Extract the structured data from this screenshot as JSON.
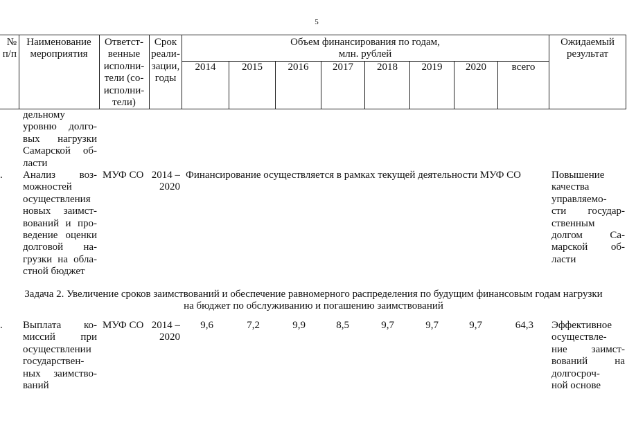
{
  "page_number": "5",
  "header": {
    "number": [
      "№",
      "п/п"
    ],
    "name": [
      "Наименование",
      "мероприятия"
    ],
    "executors": [
      "Ответст-",
      "венные",
      "исполни-",
      "тели (со-",
      "исполни-",
      "тели)"
    ],
    "period": [
      "Срок",
      "реали-",
      "зации,",
      "годы"
    ],
    "financing": [
      "Объем финансирования по годам,",
      "млн. рублей"
    ],
    "years": [
      "2014",
      "2015",
      "2016",
      "2017",
      "2018",
      "2019",
      "2020",
      "всего"
    ],
    "result": [
      "Ожидаемый",
      "результат"
    ]
  },
  "continuation": {
    "name": [
      "дельному",
      "уровню долго-",
      "вых нагрузки",
      "Самарской об-",
      "ласти"
    ]
  },
  "row_1": {
    "number": ".",
    "name": [
      "Анализ воз-",
      "можностей",
      "осуществления",
      "новых заимст-",
      "вований и про-",
      "ведение оценки",
      "долговой на-",
      "грузки на обла-",
      "стной бюджет"
    ],
    "executor": "МУФ СО",
    "period": [
      "2014 –",
      "2020"
    ],
    "financing_note": "Финансирование осуществляется в рамках текущей деятельности МУФ СО",
    "result": [
      "Повышение",
      "качества",
      "управляемо-",
      "сти государ-",
      "ственным",
      "долгом Са-",
      "марской об-",
      "ласти"
    ]
  },
  "task_2": [
    "Задача 2. Увеличение сроков заимствований и обеспечение равномерного распределения по будущим финансовым годам нагрузки",
    "на бюджет по обслуживанию и погашению заимствований"
  ],
  "row_2": {
    "number": ".",
    "name": [
      "Выплата ко-",
      "миссий при",
      "осуществлении",
      "государствен-",
      "ных заимство-",
      "ваний"
    ],
    "executor": "МУФ СО",
    "period": [
      "2014 –",
      "2020"
    ],
    "amounts": [
      "9,6",
      "7,2",
      "9,9",
      "8,5",
      "9,7",
      "9,7",
      "9,7",
      "64,3"
    ],
    "result": [
      "Эффективное",
      "осуществле-",
      "ние заимст-",
      "вований на",
      "долгосроч-",
      "ной основе"
    ]
  }
}
